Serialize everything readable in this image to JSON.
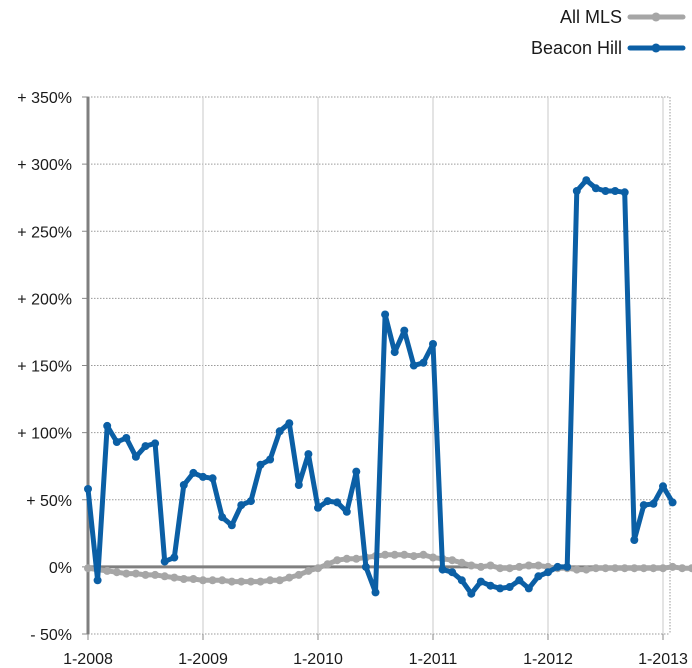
{
  "chart_data": {
    "type": "line",
    "title": "",
    "xlabel": "",
    "ylabel": "",
    "x_tick_labels": [
      "1-2008",
      "1-2009",
      "1-2010",
      "1-2011",
      "1-2012",
      "1-2013"
    ],
    "y_tick_labels": [
      "- 50%",
      "0%",
      "+ 50%",
      "+ 100%",
      "+ 150%",
      "+ 200%",
      "+ 250%",
      "+ 300%",
      "+ 350%"
    ],
    "ylim": [
      -50,
      350
    ],
    "grid": true,
    "legend_position": "top-right",
    "series": [
      {
        "name": "All MLS",
        "color": "#a6a6a6",
        "values": [
          -1,
          -2,
          -3,
          -4,
          -5,
          -5,
          -6,
          -6,
          -7,
          -8,
          -9,
          -9,
          -10,
          -10,
          -10,
          -11,
          -11,
          -11,
          -11,
          -10,
          -10,
          -8,
          -6,
          -3,
          -1,
          2,
          5,
          6,
          6,
          7,
          8,
          9,
          9,
          9,
          8,
          9,
          7,
          6,
          5,
          3,
          1,
          0,
          1,
          -1,
          -1,
          0,
          1,
          1,
          0,
          -1,
          -1,
          -2,
          -2,
          -1,
          -1,
          -1,
          -1,
          -1,
          -1,
          -1,
          -1,
          0,
          -1,
          -1,
          0,
          0,
          0,
          1,
          1,
          2,
          2,
          3,
          3
        ]
      },
      {
        "name": "Beacon Hill",
        "color": "#0b5fa5",
        "values": [
          58,
          -10,
          105,
          93,
          96,
          82,
          90,
          92,
          4,
          7,
          61,
          70,
          67,
          66,
          37,
          31,
          46,
          49,
          76,
          80,
          101,
          107,
          61,
          84,
          44,
          49,
          48,
          41,
          71,
          0,
          -19,
          188,
          160,
          176,
          150,
          152,
          166,
          -2,
          -4,
          -10,
          -20,
          -11,
          -14,
          -16,
          -15,
          -10,
          -16,
          -7,
          -4,
          0,
          0,
          280,
          288,
          282,
          280,
          280,
          279,
          20,
          46,
          47,
          60,
          48
        ]
      }
    ]
  }
}
